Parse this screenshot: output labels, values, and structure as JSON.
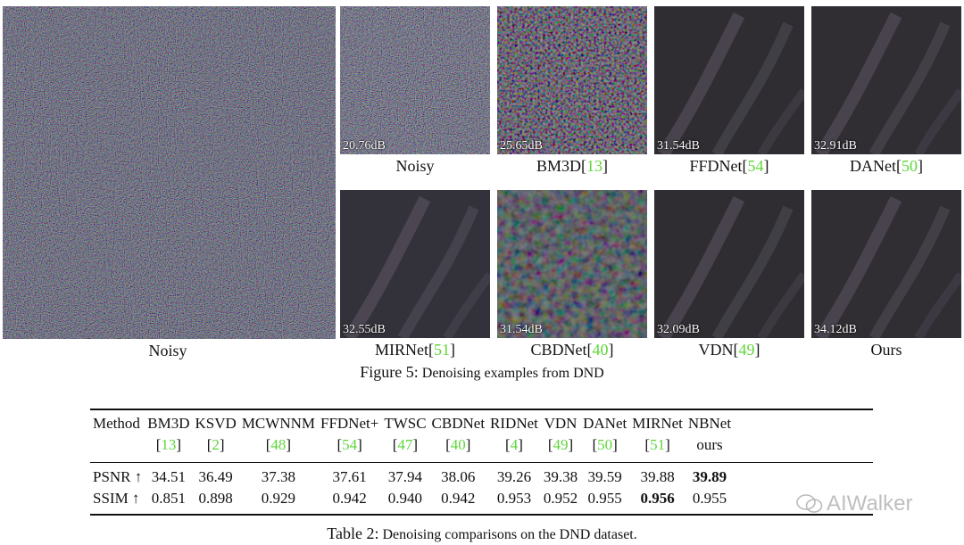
{
  "figure": {
    "main": {
      "label": "Noisy",
      "pattern": "noise-large"
    },
    "tiles": [
      {
        "psnr": "20.76dB",
        "method": "Noisy",
        "ref": "",
        "pattern": "noise"
      },
      {
        "psnr": "25.65dB",
        "method": "BM3D[",
        "ref": "13",
        "close": "]",
        "pattern": "bm3d"
      },
      {
        "psnr": "31.54dB",
        "method": "FFDNet[",
        "ref": "54",
        "close": "]",
        "pattern": "smooth1"
      },
      {
        "psnr": "32.91dB",
        "method": "DANet[",
        "ref": "50",
        "close": "]",
        "pattern": "smooth2"
      },
      {
        "psnr": "32.55dB",
        "method": "MIRNet[",
        "ref": "51",
        "close": "]",
        "pattern": "smooth3"
      },
      {
        "psnr": "31.54dB",
        "method": "CBDNet[",
        "ref": "40",
        "close": "]",
        "pattern": "cbd"
      },
      {
        "psnr": "32.09dB",
        "method": "VDN[",
        "ref": "49",
        "close": "]",
        "pattern": "smooth1"
      },
      {
        "psnr": "34.12dB",
        "method": "Ours",
        "ref": "",
        "pattern": "smooth2"
      }
    ],
    "caption_label": "Figure 5:",
    "caption_text": " Denoising examples from DND"
  },
  "table": {
    "header_label": "Method",
    "columns": [
      {
        "name": "BM3D",
        "ref": "13"
      },
      {
        "name": "KSVD",
        "ref": "2"
      },
      {
        "name": "MCWNNM",
        "ref": "48"
      },
      {
        "name": "FFDNet+",
        "ref": "54"
      },
      {
        "name": "TWSC",
        "ref": "47"
      },
      {
        "name": "CBDNet",
        "ref": "40"
      },
      {
        "name": "RIDNet",
        "ref": "4"
      },
      {
        "name": "VDN",
        "ref": "49"
      },
      {
        "name": "DANet",
        "ref": "50"
      },
      {
        "name": "MIRNet",
        "ref": "51"
      },
      {
        "name": "NBNet",
        "ref": "",
        "sub": "ours"
      }
    ],
    "rows": [
      {
        "metric": "PSNR ↑",
        "values": [
          "34.51",
          "36.49",
          "37.38",
          "37.61",
          "37.94",
          "38.06",
          "39.26",
          "39.38",
          "39.59",
          "39.88",
          "39.89"
        ],
        "bold_index": 10
      },
      {
        "metric": "SSIM ↑",
        "values": [
          "0.851",
          "0.898",
          "0.929",
          "0.942",
          "0.940",
          "0.942",
          "0.953",
          "0.952",
          "0.955",
          "0.956",
          "0.955"
        ],
        "bold_index": 9
      }
    ],
    "caption_label": "Table 2:",
    "caption_text": " Denoising comparisons on the DND dataset."
  },
  "watermark": {
    "text": "AIWalker",
    "icon": "wechat-icon"
  },
  "colors": {
    "ref_link": "#5fd63a"
  }
}
